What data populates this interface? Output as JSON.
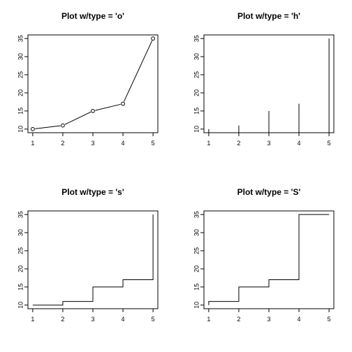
{
  "chart_data": [
    {
      "type": "line",
      "plot_type": "o",
      "title": "Plot w/type = 'o'",
      "xlabel": "",
      "ylabel": "",
      "x": [
        1,
        2,
        3,
        4,
        5
      ],
      "y": [
        10,
        11,
        15,
        17,
        35
      ],
      "xlim": [
        1,
        5
      ],
      "ylim": [
        10,
        35
      ],
      "xticks": [
        1,
        2,
        3,
        4,
        5
      ],
      "yticks": [
        10,
        15,
        20,
        25,
        30,
        35
      ],
      "grid": false
    },
    {
      "type": "bar",
      "plot_type": "h",
      "title": "Plot w/type = 'h'",
      "xlabel": "",
      "ylabel": "",
      "x": [
        1,
        2,
        3,
        4,
        5
      ],
      "y": [
        10,
        11,
        15,
        17,
        35
      ],
      "xlim": [
        1,
        5
      ],
      "ylim": [
        10,
        35
      ],
      "xticks": [
        1,
        2,
        3,
        4,
        5
      ],
      "yticks": [
        10,
        15,
        20,
        25,
        30,
        35
      ],
      "grid": false
    },
    {
      "type": "line",
      "plot_type": "s",
      "title": "Plot w/type = 's'",
      "xlabel": "",
      "ylabel": "",
      "x": [
        1,
        2,
        3,
        4,
        5
      ],
      "y": [
        10,
        11,
        15,
        17,
        35
      ],
      "xlim": [
        1,
        5
      ],
      "ylim": [
        10,
        35
      ],
      "xticks": [
        1,
        2,
        3,
        4,
        5
      ],
      "yticks": [
        10,
        15,
        20,
        25,
        30,
        35
      ],
      "grid": false
    },
    {
      "type": "line",
      "plot_type": "S",
      "title": "Plot w/type = 'S'",
      "xlabel": "",
      "ylabel": "",
      "x": [
        1,
        2,
        3,
        4,
        5
      ],
      "y": [
        10,
        11,
        15,
        17,
        35
      ],
      "xlim": [
        1,
        5
      ],
      "ylim": [
        10,
        35
      ],
      "xticks": [
        1,
        2,
        3,
        4,
        5
      ],
      "yticks": [
        10,
        15,
        20,
        25,
        30,
        35
      ],
      "grid": false
    }
  ]
}
